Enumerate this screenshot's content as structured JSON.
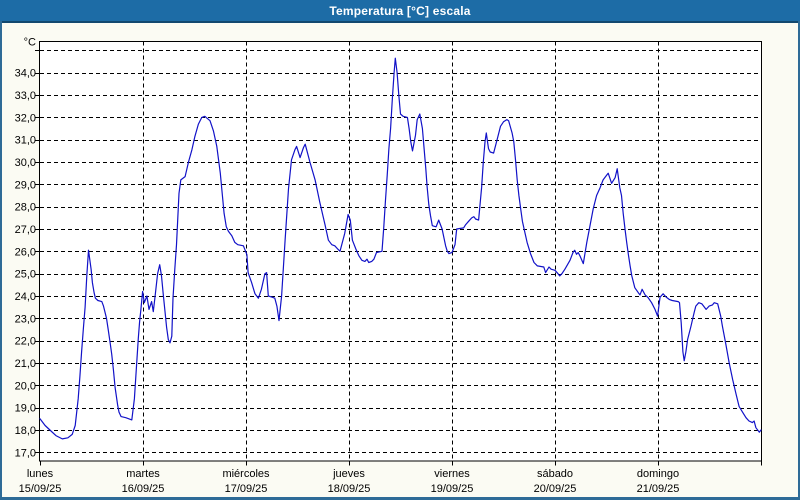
{
  "window": {
    "title": "Temperatura [°C] escala"
  },
  "colors": {
    "titlebar_bg": "#1d6ca6",
    "titlebar_text": "#ffffff",
    "window_border": "#2e6b97",
    "window_bg": "#fbfbf3",
    "plot_bg": "#ffffff",
    "grid": "#000000",
    "axis_text": "#000000",
    "series_line": "#1212c8"
  },
  "chart_data": {
    "type": "line",
    "title": "Temperatura [°C] escala",
    "xlabel": "",
    "ylabel": "°C",
    "y_unit_label": "°C",
    "ylim": [
      17,
      35
    ],
    "x_range_hours": [
      0,
      168
    ],
    "grid": "dashed",
    "legend_position": "none",
    "y_ticks": [
      {
        "value": 34,
        "label": "34,0"
      },
      {
        "value": 33,
        "label": "33,0"
      },
      {
        "value": 32,
        "label": "32,0"
      },
      {
        "value": 31,
        "label": "31,0"
      },
      {
        "value": 30,
        "label": "30,0"
      },
      {
        "value": 29,
        "label": "29,0"
      },
      {
        "value": 28,
        "label": "28,0"
      },
      {
        "value": 27,
        "label": "27,0"
      },
      {
        "value": 26,
        "label": "26,0"
      },
      {
        "value": 25,
        "label": "25,0"
      },
      {
        "value": 24,
        "label": "24,0"
      },
      {
        "value": 23,
        "label": "23,0"
      },
      {
        "value": 22,
        "label": "22,0"
      },
      {
        "value": 21,
        "label": "21,0"
      },
      {
        "value": 20,
        "label": "20,0"
      },
      {
        "value": 19,
        "label": "19,0"
      },
      {
        "value": 18,
        "label": "18,0"
      },
      {
        "value": 17,
        "label": "17,0"
      }
    ],
    "x_ticks": [
      {
        "day": "lunes",
        "date": "15/09/25"
      },
      {
        "day": "martes",
        "date": "16/09/25"
      },
      {
        "day": "miércoles",
        "date": "17/09/25"
      },
      {
        "day": "jueves",
        "date": "18/09/25"
      },
      {
        "day": "viernes",
        "date": "19/09/25"
      },
      {
        "day": "sábado",
        "date": "20/09/25"
      },
      {
        "day": "domingo",
        "date": "21/09/25"
      }
    ],
    "series": [
      {
        "name": "Temperatura [°C]",
        "color": "#1212c8",
        "points": [
          [
            0,
            18.5
          ],
          [
            1.2,
            18.2
          ],
          [
            2.3,
            18.0
          ],
          [
            3.7,
            17.75
          ],
          [
            5.2,
            17.6
          ],
          [
            6.5,
            17.65
          ],
          [
            7.5,
            17.8
          ],
          [
            8.2,
            18.2
          ],
          [
            8.9,
            19.4
          ],
          [
            9.3,
            20.4
          ],
          [
            9.7,
            21.5
          ],
          [
            10.1,
            22.5
          ],
          [
            10.5,
            23.5
          ],
          [
            10.9,
            24.9
          ],
          [
            11.3,
            26.05
          ],
          [
            11.9,
            25.2
          ],
          [
            12.2,
            24.6
          ],
          [
            12.6,
            24.15
          ],
          [
            12.9,
            23.9
          ],
          [
            13.5,
            23.8
          ],
          [
            14.4,
            23.75
          ],
          [
            14.8,
            23.55
          ],
          [
            15.5,
            23.0
          ],
          [
            15.9,
            22.5
          ],
          [
            16.3,
            21.95
          ],
          [
            16.7,
            21.4
          ],
          [
            17.1,
            20.7
          ],
          [
            17.5,
            19.9
          ],
          [
            18.1,
            19.1
          ],
          [
            18.4,
            18.8
          ],
          [
            18.9,
            18.6
          ],
          [
            20.0,
            18.55
          ],
          [
            21.4,
            18.45
          ],
          [
            22.0,
            19.4
          ],
          [
            22.3,
            20.3
          ],
          [
            22.6,
            21.2
          ],
          [
            22.9,
            22.1
          ],
          [
            23.2,
            22.85
          ],
          [
            23.5,
            23.4
          ],
          [
            23.9,
            24.2
          ],
          [
            24.3,
            23.7
          ],
          [
            24.9,
            24.0
          ],
          [
            25.4,
            23.4
          ],
          [
            26.0,
            23.75
          ],
          [
            26.4,
            23.3
          ],
          [
            26.8,
            23.95
          ],
          [
            27.4,
            25.0
          ],
          [
            27.9,
            25.4
          ],
          [
            28.3,
            24.9
          ],
          [
            28.7,
            24.1
          ],
          [
            29.1,
            23.35
          ],
          [
            29.5,
            22.6
          ],
          [
            29.9,
            22.05
          ],
          [
            30.3,
            21.9
          ],
          [
            30.7,
            22.2
          ],
          [
            31.0,
            23.9
          ],
          [
            31.4,
            25.2
          ],
          [
            31.8,
            26.3
          ],
          [
            32.1,
            27.5
          ],
          [
            32.4,
            28.6
          ],
          [
            32.8,
            29.2
          ],
          [
            33.8,
            29.35
          ],
          [
            34.6,
            30.0
          ],
          [
            35.4,
            30.55
          ],
          [
            36.1,
            31.15
          ],
          [
            36.9,
            31.7
          ],
          [
            37.7,
            32.0
          ],
          [
            38.4,
            32.05
          ],
          [
            39.6,
            31.85
          ],
          [
            40.4,
            31.4
          ],
          [
            41.2,
            30.7
          ],
          [
            42.0,
            29.5
          ],
          [
            42.5,
            28.5
          ],
          [
            42.9,
            27.7
          ],
          [
            43.4,
            27.1
          ],
          [
            43.9,
            26.9
          ],
          [
            44.7,
            26.7
          ],
          [
            45.4,
            26.4
          ],
          [
            46.1,
            26.3
          ],
          [
            47.4,
            26.25
          ],
          [
            48.2,
            25.85
          ],
          [
            48.5,
            25.05
          ],
          [
            49.3,
            24.6
          ],
          [
            50.1,
            24.1
          ],
          [
            50.9,
            23.9
          ],
          [
            51.6,
            24.3
          ],
          [
            52.4,
            25.0
          ],
          [
            52.8,
            25.05
          ],
          [
            53.2,
            24.0
          ],
          [
            54.0,
            23.95
          ],
          [
            54.7,
            23.9
          ],
          [
            55.2,
            23.55
          ],
          [
            55.7,
            22.9
          ],
          [
            56.3,
            24.0
          ],
          [
            57.1,
            26.5
          ],
          [
            57.9,
            28.8
          ],
          [
            58.6,
            30.1
          ],
          [
            59.4,
            30.55
          ],
          [
            59.8,
            30.7
          ],
          [
            60.6,
            30.2
          ],
          [
            61.4,
            30.65
          ],
          [
            61.8,
            30.8
          ],
          [
            62.9,
            30.0
          ],
          [
            64.1,
            29.2
          ],
          [
            65.2,
            28.2
          ],
          [
            66.4,
            27.2
          ],
          [
            67.2,
            26.5
          ],
          [
            68.0,
            26.3
          ],
          [
            68.7,
            26.25
          ],
          [
            69.4,
            26.1
          ],
          [
            69.9,
            26.0
          ],
          [
            71.0,
            26.8
          ],
          [
            71.8,
            27.65
          ],
          [
            72.3,
            27.4
          ],
          [
            72.8,
            26.5
          ],
          [
            73.6,
            26.1
          ],
          [
            74.3,
            25.8
          ],
          [
            75.0,
            25.6
          ],
          [
            75.7,
            25.55
          ],
          [
            76.2,
            25.65
          ],
          [
            76.6,
            25.5
          ],
          [
            77.3,
            25.55
          ],
          [
            77.8,
            25.65
          ],
          [
            78.4,
            25.95
          ],
          [
            79.7,
            26.0
          ],
          [
            80.1,
            27.1
          ],
          [
            80.5,
            28.3
          ],
          [
            80.9,
            29.4
          ],
          [
            81.3,
            30.6
          ],
          [
            81.7,
            31.5
          ],
          [
            82.1,
            32.8
          ],
          [
            82.5,
            34.0
          ],
          [
            82.8,
            34.65
          ],
          [
            83.2,
            34.0
          ],
          [
            83.6,
            33.0
          ],
          [
            84.0,
            32.15
          ],
          [
            84.6,
            32.05
          ],
          [
            85.6,
            32.0
          ],
          [
            86.0,
            31.5
          ],
          [
            86.4,
            30.9
          ],
          [
            86.8,
            30.5
          ],
          [
            87.5,
            31.2
          ],
          [
            87.9,
            31.9
          ],
          [
            88.5,
            32.15
          ],
          [
            89.1,
            31.5
          ],
          [
            89.5,
            30.6
          ],
          [
            89.9,
            29.7
          ],
          [
            90.2,
            28.9
          ],
          [
            90.6,
            28.1
          ],
          [
            91.0,
            27.6
          ],
          [
            91.4,
            27.15
          ],
          [
            92.3,
            27.1
          ],
          [
            92.9,
            27.4
          ],
          [
            93.7,
            27.0
          ],
          [
            94.5,
            26.25
          ],
          [
            94.9,
            26.0
          ],
          [
            95.3,
            25.9
          ],
          [
            96.0,
            25.95
          ],
          [
            96.7,
            26.3
          ],
          [
            97.1,
            27.0
          ],
          [
            98.7,
            27.05
          ],
          [
            99.2,
            27.2
          ],
          [
            99.9,
            27.35
          ],
          [
            100.6,
            27.5
          ],
          [
            101.1,
            27.55
          ],
          [
            101.5,
            27.45
          ],
          [
            102.2,
            27.4
          ],
          [
            102.9,
            28.85
          ],
          [
            103.3,
            30.0
          ],
          [
            103.7,
            30.9
          ],
          [
            104.0,
            31.3
          ],
          [
            104.5,
            30.6
          ],
          [
            104.9,
            30.45
          ],
          [
            105.7,
            30.4
          ],
          [
            106.5,
            31.0
          ],
          [
            107.3,
            31.6
          ],
          [
            108.0,
            31.8
          ],
          [
            108.8,
            31.9
          ],
          [
            109.2,
            31.85
          ],
          [
            110.0,
            31.3
          ],
          [
            110.4,
            30.9
          ],
          [
            110.8,
            30.1
          ],
          [
            111.2,
            29.2
          ],
          [
            111.6,
            28.5
          ],
          [
            112.0,
            27.9
          ],
          [
            112.4,
            27.35
          ],
          [
            112.8,
            27.0
          ],
          [
            113.5,
            26.4
          ],
          [
            114.3,
            25.9
          ],
          [
            115.1,
            25.5
          ],
          [
            115.9,
            25.35
          ],
          [
            117.4,
            25.3
          ],
          [
            117.8,
            25.05
          ],
          [
            118.6,
            25.3
          ],
          [
            119.1,
            25.2
          ],
          [
            120.0,
            25.15
          ],
          [
            120.7,
            25.0
          ],
          [
            121.1,
            24.9
          ],
          [
            121.6,
            25.0
          ],
          [
            122.3,
            25.2
          ],
          [
            123.5,
            25.6
          ],
          [
            124.2,
            25.95
          ],
          [
            124.6,
            26.05
          ],
          [
            125.0,
            25.87
          ],
          [
            125.4,
            25.95
          ],
          [
            125.8,
            25.8
          ],
          [
            126.6,
            25.45
          ],
          [
            127.4,
            26.4
          ],
          [
            128.1,
            27.1
          ],
          [
            128.9,
            27.9
          ],
          [
            129.7,
            28.5
          ],
          [
            130.5,
            28.85
          ],
          [
            131.2,
            29.2
          ],
          [
            132.0,
            29.4
          ],
          [
            132.4,
            29.5
          ],
          [
            133.2,
            29.05
          ],
          [
            134.0,
            29.3
          ],
          [
            134.5,
            29.7
          ],
          [
            135.1,
            28.85
          ],
          [
            135.5,
            28.5
          ],
          [
            135.9,
            27.7
          ],
          [
            136.3,
            27.0
          ],
          [
            136.7,
            26.4
          ],
          [
            137.1,
            25.85
          ],
          [
            137.5,
            25.35
          ],
          [
            137.9,
            24.9
          ],
          [
            138.6,
            24.37
          ],
          [
            139.4,
            24.15
          ],
          [
            139.8,
            24.05
          ],
          [
            140.3,
            24.3
          ],
          [
            141.0,
            24.05
          ],
          [
            141.7,
            23.93
          ],
          [
            142.5,
            23.7
          ],
          [
            143.3,
            23.4
          ],
          [
            143.9,
            23.1
          ],
          [
            144.3,
            23.7
          ],
          [
            144.5,
            23.95
          ],
          [
            145.2,
            24.1
          ],
          [
            145.9,
            23.95
          ],
          [
            146.6,
            23.85
          ],
          [
            147.3,
            23.8
          ],
          [
            148.7,
            23.75
          ],
          [
            149.0,
            23.7
          ],
          [
            149.4,
            22.8
          ],
          [
            149.8,
            21.5
          ],
          [
            150.1,
            21.1
          ],
          [
            150.5,
            21.5
          ],
          [
            150.9,
            22.05
          ],
          [
            151.7,
            22.65
          ],
          [
            152.4,
            23.25
          ],
          [
            152.8,
            23.55
          ],
          [
            153.5,
            23.7
          ],
          [
            154.2,
            23.65
          ],
          [
            155.2,
            23.4
          ],
          [
            155.9,
            23.55
          ],
          [
            156.7,
            23.6
          ],
          [
            157.1,
            23.7
          ],
          [
            157.9,
            23.65
          ],
          [
            158.6,
            23.1
          ],
          [
            159.0,
            22.65
          ],
          [
            159.8,
            21.85
          ],
          [
            160.6,
            21.0
          ],
          [
            161.4,
            20.25
          ],
          [
            162.2,
            19.6
          ],
          [
            162.9,
            19.05
          ],
          [
            163.7,
            18.8
          ],
          [
            164.5,
            18.55
          ],
          [
            165.2,
            18.4
          ],
          [
            166.0,
            18.33
          ],
          [
            166.4,
            18.4
          ],
          [
            166.8,
            18.1
          ],
          [
            167.6,
            17.9
          ],
          [
            168.0,
            18.0
          ]
        ]
      }
    ]
  }
}
